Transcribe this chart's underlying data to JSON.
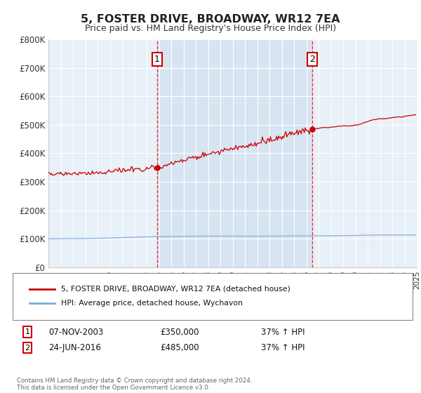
{
  "title": "5, FOSTER DRIVE, BROADWAY, WR12 7EA",
  "subtitle": "Price paid vs. HM Land Registry's House Price Index (HPI)",
  "xlim": [
    1995,
    2025
  ],
  "ylim": [
    0,
    800000
  ],
  "yticks": [
    0,
    100000,
    200000,
    300000,
    400000,
    500000,
    600000,
    700000,
    800000
  ],
  "ytick_labels": [
    "£0",
    "£100K",
    "£200K",
    "£300K",
    "£400K",
    "£500K",
    "£600K",
    "£700K",
    "£800K"
  ],
  "bg_color": "#e8f0f8",
  "shade_color": "#d0dff0",
  "sale1_year": 2003.85,
  "sale1_price": 350000,
  "sale2_year": 2016.48,
  "sale2_price": 485000,
  "line_property_color": "#cc0000",
  "line_hpi_color": "#7aaddc",
  "legend_property": "5, FOSTER DRIVE, BROADWAY, WR12 7EA (detached house)",
  "legend_hpi": "HPI: Average price, detached house, Wychavon",
  "sale1_date": "07-NOV-2003",
  "sale1_amount": "£350,000",
  "sale1_pct": "37% ↑ HPI",
  "sale2_date": "24-JUN-2016",
  "sale2_amount": "£485,000",
  "sale2_pct": "37% ↑ HPI",
  "footer": "Contains HM Land Registry data © Crown copyright and database right 2024.\nThis data is licensed under the Open Government Licence v3.0."
}
